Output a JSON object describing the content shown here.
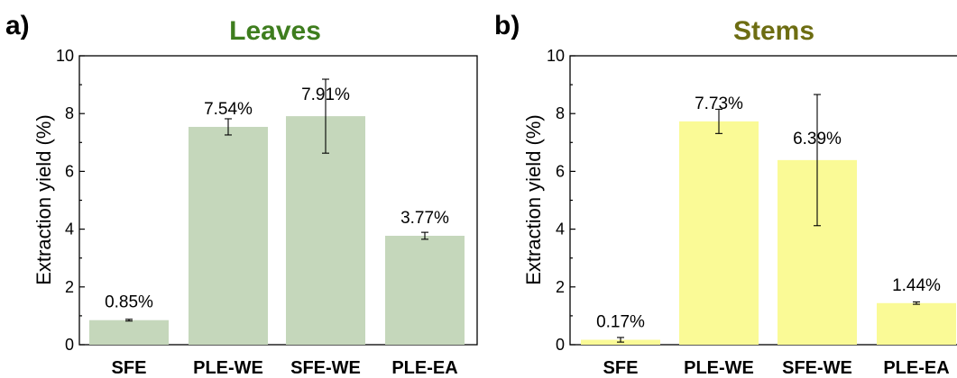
{
  "chart_data": [
    {
      "type": "bar",
      "panel_label": "a)",
      "title": "Leaves",
      "title_color": "#3e7d1e",
      "bar_color": "#c5d7bb",
      "ylabel": "Extraction yield (%)",
      "xlabel": "",
      "ylim": [
        0,
        10
      ],
      "yticks": [
        "0",
        "2",
        "4",
        "6",
        "8",
        "10"
      ],
      "categories": [
        "SFE",
        "PLE-WE",
        "SFE-WE",
        "PLE-EA"
      ],
      "values": [
        0.85,
        7.54,
        7.91,
        3.77
      ],
      "errors": [
        0.03,
        0.28,
        1.28,
        0.12
      ],
      "data_labels": [
        "0.85%",
        "7.54%",
        "7.91%",
        "3.77%"
      ],
      "grid": false
    },
    {
      "type": "bar",
      "panel_label": "b)",
      "title": "Stems",
      "title_color": "#6d6d12",
      "bar_color": "#fafa96",
      "ylabel": "Extraction yield (%)",
      "xlabel": "",
      "ylim": [
        0,
        10
      ],
      "yticks": [
        "0",
        "2",
        "4",
        "6",
        "8",
        "10"
      ],
      "categories": [
        "SFE",
        "PLE-WE",
        "SFE-WE",
        "PLE-EA"
      ],
      "values": [
        0.17,
        7.73,
        6.39,
        1.44
      ],
      "errors": [
        0.08,
        0.42,
        2.27,
        0.04
      ],
      "data_labels": [
        "0.17%",
        "7.73%",
        "6.39%",
        "1.44%"
      ],
      "grid": false
    }
  ]
}
